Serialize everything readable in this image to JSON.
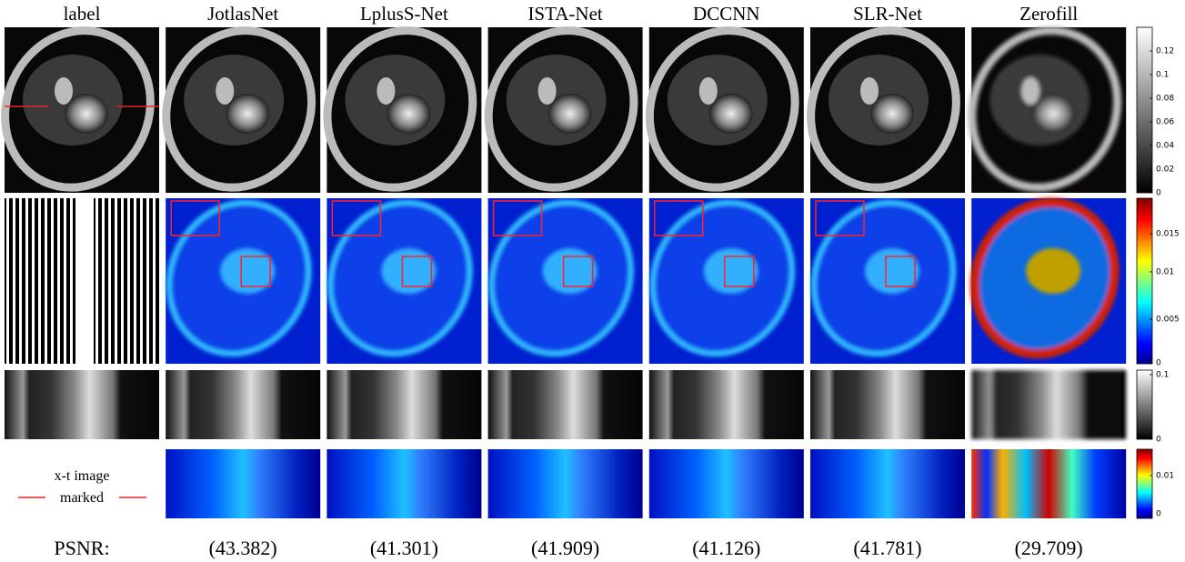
{
  "columns": [
    "label",
    "JotlasNet",
    "LplusS-Net",
    "ISTA-Net",
    "DCCNN",
    "SLR-Net",
    "Zerofill"
  ],
  "colorbars": [
    {
      "ticks": [
        "0.12",
        "0.1",
        "0.08",
        "0.06",
        "0.04",
        "0.02",
        "0"
      ]
    },
    {
      "ticks": [
        "0.015",
        "0.01",
        "0.005",
        "0"
      ]
    },
    {
      "ticks": [
        "0.1",
        "0"
      ]
    },
    {
      "ticks": [
        "0.01",
        "0"
      ]
    }
  ],
  "annotation": {
    "line1": "x-t image",
    "line2": "marked"
  },
  "psnr": {
    "label": "PSNR:",
    "values": [
      "(43.382)",
      "(41.301)",
      "(41.909)",
      "(41.126)",
      "(41.781)",
      "(29.709)"
    ]
  }
}
